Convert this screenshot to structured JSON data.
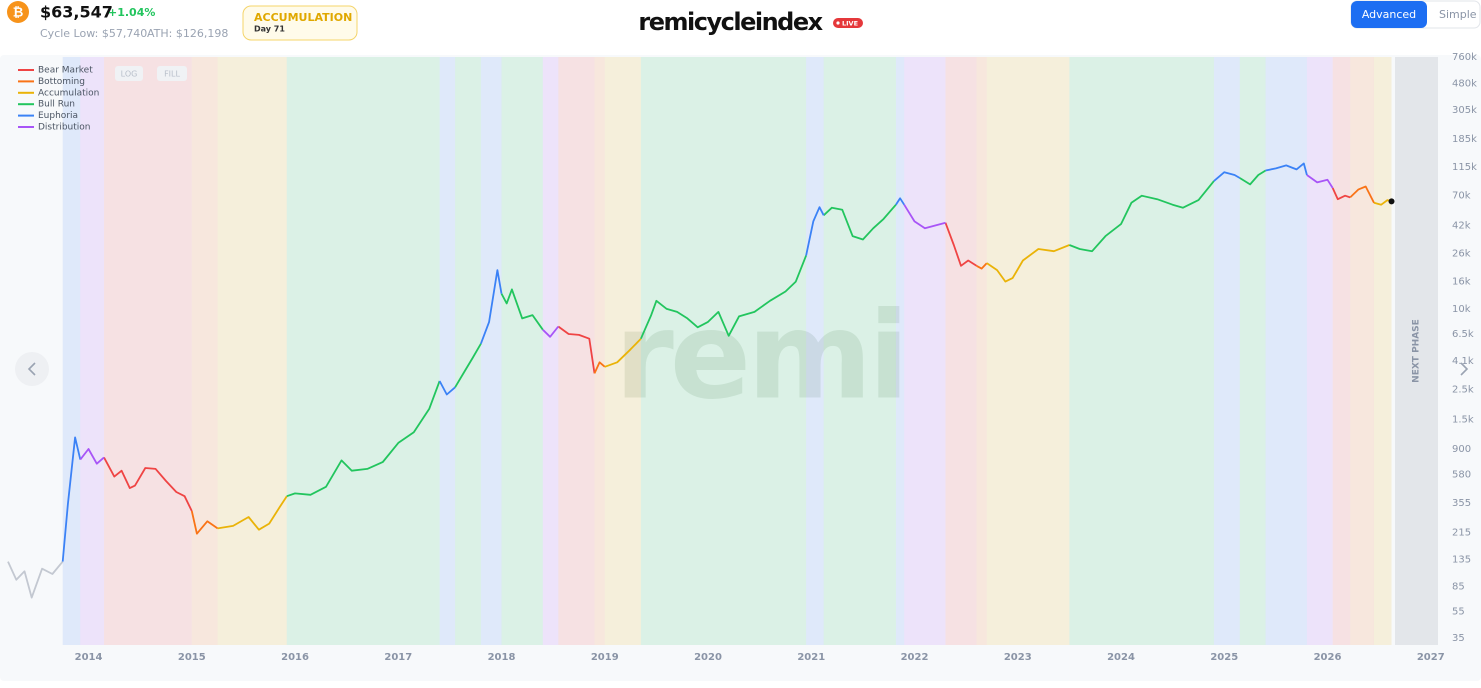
{
  "header": {
    "icon": "₿",
    "price": "$63,547",
    "change": "+1.04%",
    "cycle_low": "Cycle Low: $57,740",
    "ath": "ATH: $126,198",
    "phase": "ACCUMULATION",
    "day": "Day 71",
    "logo": "remicycleindex",
    "live": "LIVE",
    "tabs": [
      "Advanced",
      "Simple"
    ]
  },
  "controls": {
    "log": "LOG",
    "fill": "FILL"
  },
  "next_phase": "NEXT PHASE",
  "watermark": "remi",
  "chart_data": {
    "type": "line",
    "log_scale": true,
    "grid": false,
    "legend": "top-left",
    "xlim": [
      2013.22,
      2027.07
    ],
    "xticks": [
      2014,
      2015,
      2016,
      2017,
      2018,
      2019,
      2020,
      2021,
      2022,
      2023,
      2024,
      2025,
      2026,
      2027
    ],
    "ylim": [
      31,
      760000
    ],
    "yticks": [
      35,
      55,
      85,
      135,
      215,
      355,
      580,
      900,
      {
        "value": 1500,
        "label": "1.5k"
      },
      {
        "value": 2500,
        "label": "2.5k"
      },
      {
        "value": 4100,
        "label": "4.1k"
      },
      {
        "value": 6500,
        "label": "6.5k"
      },
      {
        "value": 10000,
        "label": "10k"
      },
      {
        "value": 16000,
        "label": "16k"
      },
      {
        "value": 26000,
        "label": "26k"
      },
      {
        "value": 42000,
        "label": "42k"
      },
      {
        "value": 70000,
        "label": "70k"
      },
      {
        "value": 115000,
        "label": "115k"
      },
      {
        "value": 185000,
        "label": "185k"
      },
      {
        "value": 305000,
        "label": "305k"
      },
      {
        "value": 480000,
        "label": "480k"
      },
      {
        "value": 760000,
        "label": "760k"
      }
    ],
    "series": [
      {
        "color": "#c3c8d1",
        "x": [
          2013.22,
          2013.3,
          2013.38,
          2013.45,
          2013.55,
          2013.65,
          2013.75
        ],
        "values": [
          130,
          95,
          110,
          70,
          115,
          105,
          130
        ]
      },
      {
        "name": "Bear Market",
        "color": "#ef4444",
        "x": [
          2014.15,
          2014.25,
          2014.32,
          2014.4,
          2014.45,
          2014.55,
          2014.65,
          2014.75,
          2014.85,
          2014.93,
          2015.0,
          null,
          2018.55,
          2018.65,
          2018.75,
          2018.85,
          2018.9,
          null,
          2022.3,
          2022.38,
          2022.45,
          2022.52,
          2022.6,
          null,
          2026.05,
          2026.1,
          2026.17,
          2026.22
        ],
        "values": [
          780,
          560,
          620,
          460,
          480,
          650,
          640,
          520,
          430,
          400,
          310,
          null,
          7400,
          6500,
          6400,
          6000,
          3300,
          null,
          44000,
          30000,
          21000,
          23000,
          21000,
          null,
          80000,
          66000,
          70000,
          68000
        ]
      },
      {
        "name": "Bottoming",
        "color": "#f97316",
        "x": [
          2015.0,
          2015.05,
          2015.15,
          2015.25,
          null,
          2018.9,
          2018.95,
          2019.0,
          null,
          2022.6,
          2022.65,
          2022.7,
          null,
          2026.22,
          2026.3,
          2026.37,
          2026.45
        ],
        "values": [
          310,
          210,
          260,
          230,
          null,
          3300,
          4000,
          3700,
          null,
          21000,
          20000,
          22000,
          null,
          68000,
          78000,
          82000,
          62000
        ]
      },
      {
        "name": "Accumulation",
        "color": "#eab308",
        "x": [
          2015.25,
          2015.4,
          2015.55,
          2015.65,
          2015.75,
          2015.85,
          2015.92,
          null,
          2019.0,
          2019.12,
          2019.25,
          2019.35,
          null,
          2022.7,
          2022.8,
          2022.88,
          2022.95,
          2023.05,
          2023.2,
          2023.35,
          2023.5,
          null,
          2026.45,
          2026.52,
          2026.58,
          2026.62
        ],
        "values": [
          230,
          240,
          280,
          225,
          250,
          330,
          400,
          null,
          3700,
          4000,
          5000,
          6000,
          null,
          22000,
          19500,
          16000,
          17000,
          23000,
          28000,
          27000,
          30000,
          null,
          62000,
          60000,
          65000,
          63547
        ]
      },
      {
        "name": "Bull Run",
        "color": "#22c55e",
        "x": [
          2015.92,
          2016.0,
          2016.15,
          2016.3,
          2016.45,
          2016.55,
          2016.7,
          2016.85,
          2017.0,
          2017.15,
          2017.3,
          2017.4,
          null,
          2017.55,
          2017.65,
          2017.72,
          2017.8,
          null,
          2018.0,
          2018.05,
          2018.1,
          2018.2,
          2018.3,
          2018.4,
          null,
          2019.35,
          2019.45,
          2019.5,
          2019.6,
          2019.7,
          2019.8,
          2019.9,
          2020.0,
          2020.1,
          2020.2,
          2020.3,
          2020.45,
          2020.6,
          2020.75,
          2020.85,
          2020.95,
          null,
          2021.12,
          2021.2,
          2021.3,
          2021.4,
          2021.5,
          2021.6,
          2021.7,
          2021.82,
          null,
          2023.5,
          2023.6,
          2023.72,
          2023.85,
          2024.0,
          2024.1,
          2024.2,
          2024.35,
          2024.5,
          2024.6,
          2024.75,
          2024.9,
          null,
          2025.15,
          2025.25,
          2025.33,
          2025.4
        ],
        "values": [
          400,
          420,
          410,
          470,
          740,
          620,
          640,
          720,
          1000,
          1200,
          1800,
          2900,
          null,
          2600,
          3500,
          4300,
          5500,
          null,
          13000,
          11000,
          14000,
          8500,
          9000,
          7000,
          null,
          6000,
          9000,
          11500,
          10000,
          9500,
          8500,
          7300,
          8000,
          9500,
          6300,
          8800,
          9500,
          11500,
          13500,
          16000,
          25000,
          null,
          50000,
          57000,
          55000,
          35000,
          33000,
          40000,
          47000,
          60000,
          null,
          30000,
          28000,
          27000,
          35000,
          43000,
          62000,
          70000,
          66000,
          60000,
          57000,
          65000,
          90000,
          null,
          95000,
          85000,
          100000,
          108000
        ]
      },
      {
        "name": "Euphoria",
        "color": "#3b82f6",
        "x": [
          2013.75,
          2013.8,
          2013.87,
          2013.92,
          null,
          2017.4,
          2017.47,
          2017.55,
          null,
          2017.8,
          2017.88,
          2017.96,
          2018.0,
          null,
          2020.95,
          2021.02,
          2021.08,
          2021.12,
          null,
          2021.82,
          2021.86,
          2021.9,
          null,
          2024.9,
          2025.0,
          2025.1,
          2025.15,
          null,
          2025.4,
          2025.5,
          2025.6,
          2025.7,
          2025.77,
          2025.8
        ],
        "values": [
          130,
          350,
          1100,
          750,
          null,
          2900,
          2300,
          2600,
          null,
          5500,
          8000,
          19500,
          13000,
          null,
          25000,
          45000,
          57500,
          50000,
          null,
          60000,
          67000,
          60000,
          null,
          90000,
          105000,
          100000,
          95000,
          null,
          108000,
          112000,
          118000,
          110000,
          122000,
          100000
        ]
      },
      {
        "name": "Distribution",
        "color": "#a855f7",
        "x": [
          2013.92,
          2014.0,
          2014.08,
          2014.15,
          null,
          2018.4,
          2018.47,
          2018.55,
          null,
          2021.9,
          2022.0,
          2022.1,
          2022.2,
          2022.3,
          null,
          2025.8,
          2025.9,
          2026.0,
          2026.05
        ],
        "values": [
          750,
          900,
          700,
          780,
          null,
          7000,
          6200,
          7400,
          null,
          60000,
          45000,
          40000,
          42000,
          44000,
          null,
          100000,
          88000,
          92000,
          80000
        ]
      }
    ]
  }
}
